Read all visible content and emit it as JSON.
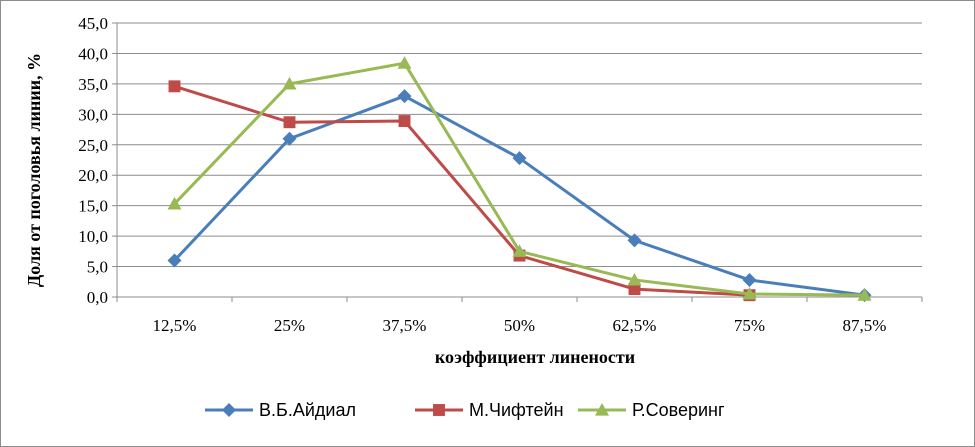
{
  "chart_data": {
    "type": "line",
    "title": "",
    "xlabel": "коэффициент линености",
    "ylabel": "Доля от поголовья линии, %",
    "categories": [
      "12,5%",
      "25%",
      "37,5%",
      "50%",
      "62,5%",
      "75%",
      "87,5%"
    ],
    "y_ticks": [
      "0,0",
      "5,0",
      "10,0",
      "15,0",
      "20,0",
      "25,0",
      "30,0",
      "35,0",
      "40,0",
      "45,0"
    ],
    "ylim": [
      0,
      45
    ],
    "grid": true,
    "legend_position": "bottom",
    "series": [
      {
        "name": "В.Б.Айдиал",
        "color": "#4a7ebb",
        "marker": "diamond",
        "values": [
          6.0,
          26.0,
          33.0,
          22.8,
          9.3,
          2.8,
          0.3
        ]
      },
      {
        "name": "М.Чифтейн",
        "color": "#be4b48",
        "marker": "square",
        "values": [
          34.6,
          28.7,
          28.9,
          6.8,
          1.3,
          0.3,
          null
        ]
      },
      {
        "name": "Р.Соверинг",
        "color": "#98b954",
        "marker": "triangle",
        "values": [
          15.3,
          35.0,
          38.4,
          7.5,
          2.8,
          0.5,
          0.3
        ]
      }
    ]
  }
}
